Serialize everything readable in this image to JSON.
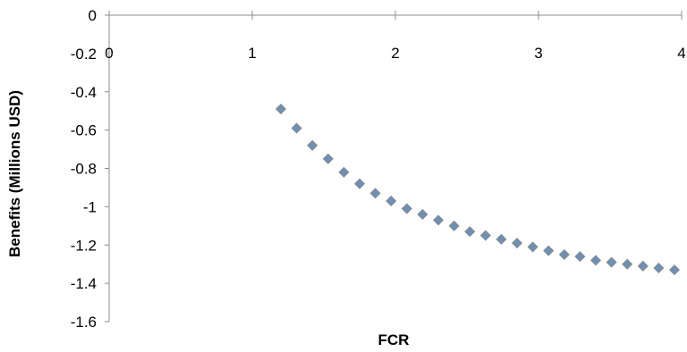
{
  "chart_data": {
    "type": "scatter",
    "title": "",
    "xlabel": "FCR",
    "ylabel": "Benefits (Millions  USD)",
    "xlim": [
      0,
      4
    ],
    "ylim": [
      -1.6,
      0
    ],
    "x_ticks": [
      "0",
      "1",
      "2",
      "3",
      "4"
    ],
    "y_ticks": [
      "0",
      "-0.2",
      "-0.4",
      "-0.6",
      "-0.8",
      "-1",
      "-1.2",
      "-1.4",
      "-1.6"
    ],
    "x_tick_values": [
      0,
      1,
      2,
      3,
      4
    ],
    "y_tick_values": [
      0,
      -0.2,
      -0.4,
      -0.6,
      -0.8,
      -1,
      -1.2,
      -1.4,
      -1.6
    ],
    "grid": false,
    "legend": "none",
    "series": [
      {
        "marker": "diamond",
        "color": "#6f8fb3",
        "x": [
          1.2,
          1.31,
          1.42,
          1.53,
          1.64,
          1.75,
          1.86,
          1.97,
          2.08,
          2.19,
          2.3,
          2.41,
          2.52,
          2.63,
          2.74,
          2.85,
          2.96,
          3.07,
          3.18,
          3.29,
          3.4,
          3.51,
          3.62,
          3.73,
          3.84,
          3.95
        ],
        "y": [
          -0.49,
          -0.59,
          -0.68,
          -0.75,
          -0.82,
          -0.88,
          -0.93,
          -0.97,
          -1.01,
          -1.04,
          -1.07,
          -1.1,
          -1.13,
          -1.15,
          -1.17,
          -1.19,
          -1.21,
          -1.23,
          -1.25,
          -1.26,
          -1.28,
          -1.29,
          -1.3,
          -1.31,
          -1.32,
          -1.33
        ]
      }
    ]
  }
}
